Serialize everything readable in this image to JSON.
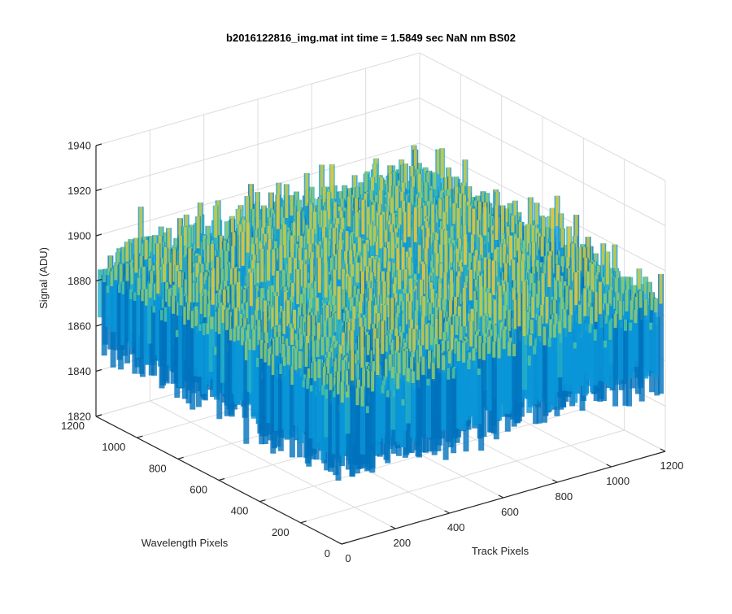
{
  "chart_data": {
    "type": "surface",
    "title": "b2016122816_img.mat int time = 1.5849 sec  NaN nm BS02",
    "xlabel": "Track Pixels",
    "ylabel": "Wavelength Pixels",
    "zlabel": "Signal (ADU)",
    "xlim": [
      0,
      1200
    ],
    "ylim": [
      0,
      1200
    ],
    "zlim": [
      1820,
      1940
    ],
    "xticks": [
      "0",
      "200",
      "400",
      "600",
      "800",
      "1000",
      "1200"
    ],
    "yticks": [
      "0",
      "200",
      "400",
      "600",
      "800",
      "1000",
      "1200"
    ],
    "zticks": [
      "1820",
      "1840",
      "1860",
      "1880",
      "1900",
      "1920",
      "1940"
    ],
    "data_extent": {
      "x": [
        0,
        1200
      ],
      "y": [
        0,
        1200
      ]
    },
    "approx_mean_signal": 1875,
    "approx_signal_range": [
      1830,
      1930
    ],
    "grid": true,
    "colormap": "parula",
    "colors": [
      "#0072bd",
      "#0a96d8",
      "#26b0c8",
      "#4cbfa0",
      "#8cc870",
      "#c6c948",
      "#e8c736"
    ]
  }
}
